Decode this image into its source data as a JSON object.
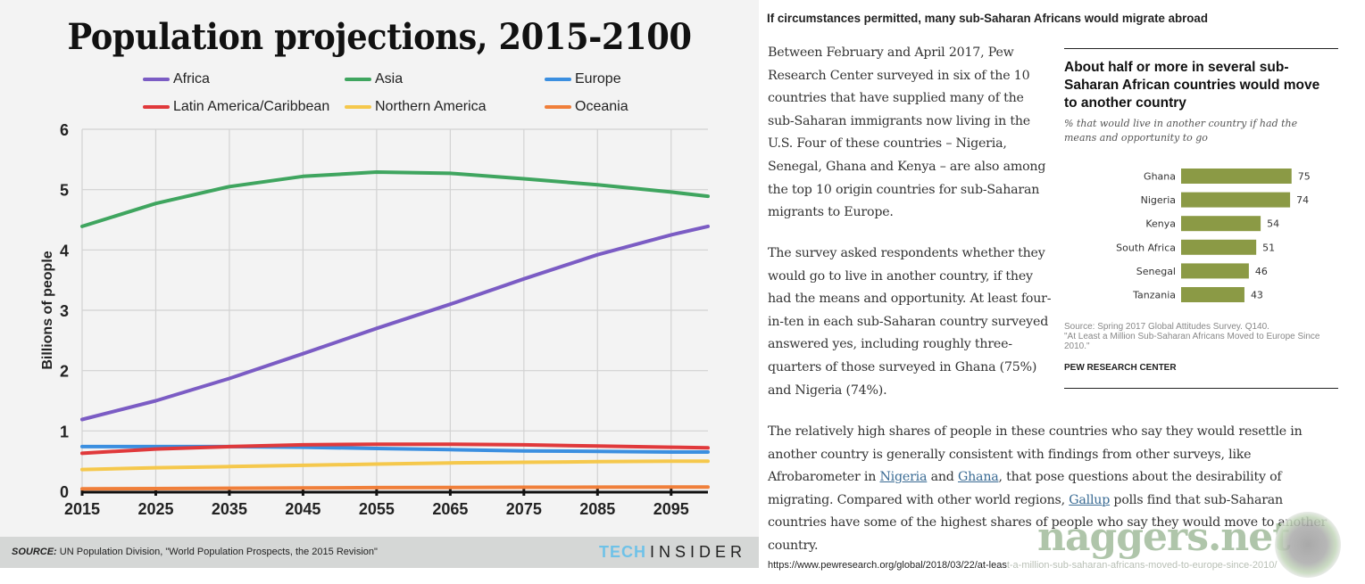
{
  "left_chart": {
    "source_label": "SOURCE:",
    "source_text": "UN Population Division, \"World Population Prospects, the 2015 Revision\"",
    "brand_tech": "TECH",
    "brand_insider": "INSIDER"
  },
  "chart_data": [
    {
      "type": "line",
      "title": "Population projections, 2015-2100",
      "xlabel": "",
      "ylabel": "Billions of people",
      "xlim": [
        2015,
        2100
      ],
      "ylim": [
        0,
        6
      ],
      "grid": true,
      "legend_position": "top",
      "x_ticks": [
        "2015",
        "2025",
        "2035",
        "2045",
        "2055",
        "2065",
        "2075",
        "2085",
        "2095"
      ],
      "y_ticks": [
        "0",
        "1",
        "2",
        "3",
        "4",
        "5",
        "6"
      ],
      "x": [
        2015,
        2025,
        2035,
        2045,
        2055,
        2065,
        2075,
        2085,
        2095,
        2100
      ],
      "series": [
        {
          "name": "Africa",
          "color": "#7b5cc4",
          "values": [
            1.19,
            1.5,
            1.87,
            2.28,
            2.7,
            3.1,
            3.52,
            3.92,
            4.25,
            4.39
          ]
        },
        {
          "name": "Asia",
          "color": "#3fa55f",
          "values": [
            4.39,
            4.77,
            5.05,
            5.22,
            5.29,
            5.27,
            5.18,
            5.08,
            4.96,
            4.89
          ]
        },
        {
          "name": "Europe",
          "color": "#3b8fe0",
          "values": [
            0.74,
            0.74,
            0.74,
            0.73,
            0.71,
            0.69,
            0.67,
            0.66,
            0.65,
            0.65
          ]
        },
        {
          "name": "Latin America/Caribbean",
          "color": "#e0393b",
          "values": [
            0.63,
            0.7,
            0.74,
            0.77,
            0.78,
            0.78,
            0.77,
            0.75,
            0.73,
            0.72
          ]
        },
        {
          "name": "Northern America",
          "color": "#f5c84c",
          "values": [
            0.36,
            0.39,
            0.41,
            0.43,
            0.45,
            0.47,
            0.48,
            0.49,
            0.5,
            0.5
          ]
        },
        {
          "name": "Oceania",
          "color": "#f07f3a",
          "values": [
            0.04,
            0.045,
            0.05,
            0.055,
            0.06,
            0.063,
            0.066,
            0.068,
            0.07,
            0.071
          ]
        }
      ]
    },
    {
      "type": "bar",
      "orientation": "horizontal",
      "title": "About half or more in several sub-Saharan African countries would move to another country",
      "subtitle": "% that would live in another country if had the means and opportunity to go",
      "categories": [
        "Ghana",
        "Nigeria",
        "Kenya",
        "South Africa",
        "Senegal",
        "Tanzania"
      ],
      "values": [
        75,
        74,
        54,
        51,
        46,
        43
      ],
      "color": "#8b9a45",
      "xlim": [
        0,
        100
      ]
    }
  ],
  "article": {
    "heading": "If circumstances permitted, many sub-Saharan Africans would migrate abroad",
    "para1": "Between February and April 2017, Pew Research Center surveyed in six of the 10 countries that have supplied many of the sub-Saharan immigrants now living in the U.S. Four of these countries – Nigeria, Senegal, Ghana and Kenya – are also among the top 10 origin countries for sub-Saharan migrants to Europe.",
    "para2": "The survey asked respondents whether they would go to live in another country, if they had the means and opportunity. At least four-in-ten in each sub-Saharan country surveyed answered yes, including roughly three-quarters of those surveyed in Ghana (75%) and Nigeria (74%).",
    "para3_a": "The relatively high shares of people in these countries who say they would resettle in another country is generally consistent with findings from other surveys, like Afrobarometer in ",
    "link_nigeria": "Nigeria",
    "para3_b": " and ",
    "link_ghana": "Ghana",
    "para3_c": ", that pose questions about the desirability of migrating. Compared with other world regions, ",
    "link_gallup": "Gallup",
    "para3_d": " polls find that sub-Saharan countries have some of the highest shares of people who say they would move to another country.",
    "url_a": "https://www.pewresearch.org/global/2018/03/22/at-leas",
    "url_b": "t-a-million-sub-saharan-africans-moved-to-europe-since-2010/"
  },
  "pew_chart": {
    "source": "Source: Spring 2017 Global Attitudes Survey. Q140.",
    "source_2": "\"At Least a Million Sub-Saharan Africans Moved to Europe Since 2010.\"",
    "brand": "PEW RESEARCH CENTER"
  },
  "watermark": {
    "text": "naggers.net"
  }
}
